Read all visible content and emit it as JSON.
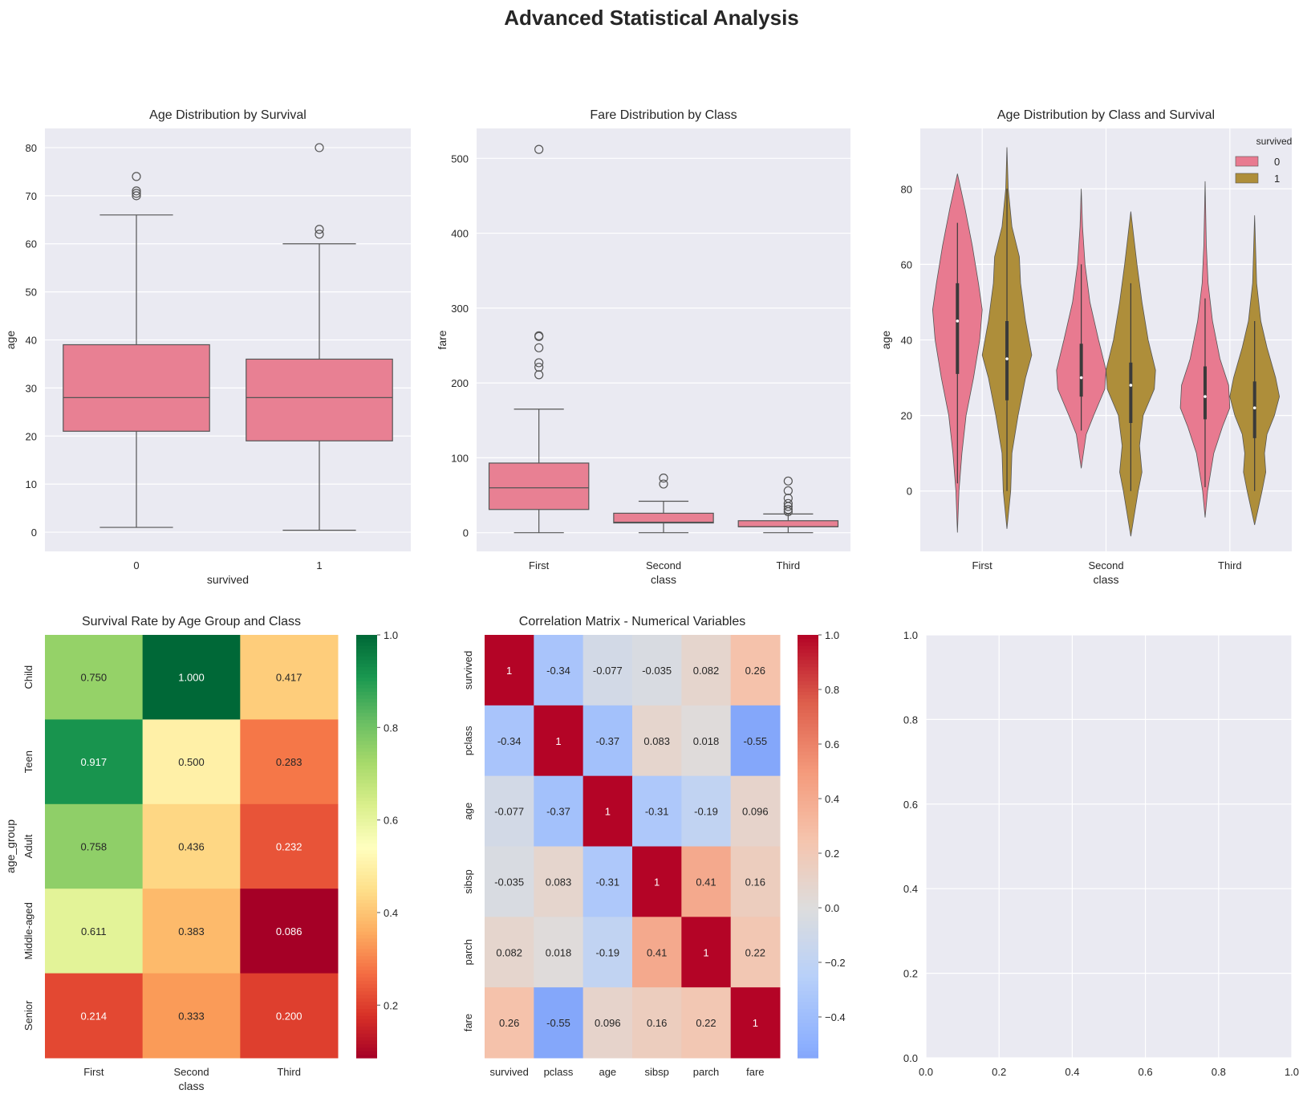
{
  "figure": {
    "title": "Advanced Statistical Analysis"
  },
  "colors": {
    "axes_bg": "#EAEAF2",
    "grid": "#FFFFFF",
    "box_fill": "#E88093",
    "violin_0": "#E87A90",
    "violin_1": "#AE8E3A",
    "box_line": "#555555"
  },
  "chart_data": [
    {
      "type": "box",
      "title": "Age Distribution by Survival",
      "xlabel": "survived",
      "ylabel": "age",
      "categories": [
        "0",
        "1"
      ],
      "ylim": [
        -4,
        84
      ],
      "yticks": [
        0,
        10,
        20,
        30,
        40,
        50,
        60,
        70,
        80
      ],
      "grid": true,
      "boxes": [
        {
          "category": "0",
          "whisker_low": 1,
          "q1": 21,
          "median": 28,
          "q3": 39,
          "whisker_high": 66,
          "outliers": [
            70,
            70.5,
            71,
            74
          ]
        },
        {
          "category": "1",
          "whisker_low": 0.4,
          "q1": 19,
          "median": 28,
          "q3": 36,
          "whisker_high": 60,
          "outliers": [
            62,
            63,
            80
          ]
        }
      ]
    },
    {
      "type": "box",
      "title": "Fare Distribution by Class",
      "xlabel": "class",
      "ylabel": "fare",
      "categories": [
        "First",
        "Second",
        "Third"
      ],
      "ylim": [
        -25,
        540
      ],
      "yticks": [
        0,
        100,
        200,
        300,
        400,
        500
      ],
      "grid": true,
      "boxes": [
        {
          "category": "First",
          "whisker_low": 0,
          "q1": 31,
          "median": 60,
          "q3": 93,
          "whisker_high": 165,
          "outliers": [
            211,
            221,
            227,
            247,
            262,
            263,
            512
          ]
        },
        {
          "category": "Second",
          "whisker_low": 0,
          "q1": 13,
          "median": 14,
          "q3": 26,
          "whisker_high": 42,
          "outliers": [
            65,
            73
          ]
        },
        {
          "category": "Third",
          "whisker_low": 0,
          "q1": 8,
          "median": 8,
          "q3": 16,
          "whisker_high": 25,
          "outliers": [
            28,
            31,
            35,
            39,
            46,
            56,
            69
          ]
        }
      ]
    },
    {
      "type": "violin",
      "title": "Age Distribution by Class and Survival",
      "xlabel": "class",
      "ylabel": "age",
      "categories": [
        "First",
        "Second",
        "Third"
      ],
      "ylim": [
        -16,
        96
      ],
      "yticks": [
        0,
        20,
        40,
        60,
        80
      ],
      "grid": true,
      "legend": {
        "title": "survived",
        "entries": [
          "0",
          "1"
        ],
        "placement": "top-right"
      },
      "violins": [
        {
          "category": "First",
          "survived": "0",
          "profile": [
            [
              -11,
              0.0
            ],
            [
              0,
              0.06
            ],
            [
              10,
              0.18
            ],
            [
              20,
              0.35
            ],
            [
              30,
              0.65
            ],
            [
              40,
              0.9
            ],
            [
              48,
              1.0
            ],
            [
              55,
              0.85
            ],
            [
              65,
              0.6
            ],
            [
              75,
              0.3
            ],
            [
              84,
              0.0
            ]
          ],
          "q1": 31,
          "median": 45,
          "q3": 55,
          "whisker_low": 2,
          "whisker_high": 71
        },
        {
          "category": "First",
          "survived": "1",
          "profile": [
            [
              -10,
              0.0
            ],
            [
              0,
              0.15
            ],
            [
              10,
              0.2
            ],
            [
              20,
              0.45
            ],
            [
              30,
              0.75
            ],
            [
              36,
              1.0
            ],
            [
              45,
              0.75
            ],
            [
              55,
              0.55
            ],
            [
              62,
              0.5
            ],
            [
              70,
              0.2
            ],
            [
              80,
              0.05
            ],
            [
              91,
              0.0
            ]
          ],
          "q1": 24,
          "median": 35,
          "q3": 45,
          "whisker_low": 0,
          "whisker_high": 80
        },
        {
          "category": "Second",
          "survived": "0",
          "profile": [
            [
              6,
              0.0
            ],
            [
              15,
              0.2
            ],
            [
              20,
              0.5
            ],
            [
              27,
              0.95
            ],
            [
              32,
              1.0
            ],
            [
              40,
              0.7
            ],
            [
              50,
              0.35
            ],
            [
              60,
              0.15
            ],
            [
              70,
              0.05
            ],
            [
              80,
              0.0
            ]
          ],
          "q1": 25,
          "median": 30,
          "q3": 39,
          "whisker_low": 16,
          "whisker_high": 60
        },
        {
          "category": "Second",
          "survived": "1",
          "profile": [
            [
              -12,
              0.0
            ],
            [
              0,
              0.3
            ],
            [
              5,
              0.45
            ],
            [
              12,
              0.35
            ],
            [
              20,
              0.5
            ],
            [
              27,
              0.95
            ],
            [
              32,
              1.0
            ],
            [
              40,
              0.7
            ],
            [
              50,
              0.45
            ],
            [
              60,
              0.25
            ],
            [
              74,
              0.0
            ]
          ],
          "q1": 18,
          "median": 28,
          "q3": 34,
          "whisker_low": 0,
          "whisker_high": 55
        },
        {
          "category": "Third",
          "survived": "0",
          "profile": [
            [
              -7,
              0.0
            ],
            [
              0,
              0.1
            ],
            [
              10,
              0.35
            ],
            [
              17,
              0.7
            ],
            [
              22,
              1.0
            ],
            [
              28,
              0.95
            ],
            [
              35,
              0.6
            ],
            [
              45,
              0.3
            ],
            [
              55,
              0.12
            ],
            [
              65,
              0.05
            ],
            [
              82,
              0.0
            ]
          ],
          "q1": 19,
          "median": 25,
          "q3": 33,
          "whisker_low": 1,
          "whisker_high": 51
        },
        {
          "category": "Third",
          "survived": "1",
          "profile": [
            [
              -9,
              0.0
            ],
            [
              0,
              0.3
            ],
            [
              5,
              0.45
            ],
            [
              10,
              0.4
            ],
            [
              15,
              0.5
            ],
            [
              20,
              0.8
            ],
            [
              25,
              1.0
            ],
            [
              30,
              0.85
            ],
            [
              38,
              0.5
            ],
            [
              45,
              0.25
            ],
            [
              55,
              0.08
            ],
            [
              73,
              0.0
            ]
          ],
          "q1": 14,
          "median": 22,
          "q3": 29,
          "whisker_low": 0,
          "whisker_high": 45
        }
      ]
    },
    {
      "type": "heatmap",
      "title": "Survival Rate by Age Group and Class",
      "xlabel": "class",
      "ylabel": "age_group",
      "x": [
        "First",
        "Second",
        "Third"
      ],
      "y": [
        "Child",
        "Teen",
        "Adult",
        "Middle-aged",
        "Senior"
      ],
      "values": [
        [
          0.75,
          1.0,
          0.417
        ],
        [
          0.917,
          0.5,
          0.283
        ],
        [
          0.758,
          0.436,
          0.232
        ],
        [
          0.611,
          0.383,
          0.086
        ],
        [
          0.214,
          0.333,
          0.2
        ]
      ],
      "labels": [
        [
          "0.750",
          "1.000",
          "0.417"
        ],
        [
          "0.917",
          "0.500",
          "0.283"
        ],
        [
          "0.758",
          "0.436",
          "0.232"
        ],
        [
          "0.611",
          "0.383",
          "0.086"
        ],
        [
          "0.214",
          "0.333",
          "0.200"
        ]
      ],
      "colormap": "RdYlGn",
      "vmin": 0.086,
      "vmax": 1.0,
      "colorbar_ticks": [
        0.2,
        0.4,
        0.6,
        0.8,
        1.0
      ],
      "colorbar_tick_labels": [
        "0.2",
        "0.4",
        "0.6",
        "0.8",
        "1.0"
      ]
    },
    {
      "type": "heatmap",
      "title": "Correlation Matrix - Numerical Variables",
      "xlabel": "",
      "ylabel": "",
      "x": [
        "survived",
        "pclass",
        "age",
        "sibsp",
        "parch",
        "fare"
      ],
      "y": [
        "survived",
        "pclass",
        "age",
        "sibsp",
        "parch",
        "fare"
      ],
      "values": [
        [
          1,
          -0.34,
          -0.077,
          -0.035,
          0.082,
          0.26
        ],
        [
          -0.34,
          1,
          -0.37,
          0.083,
          0.018,
          -0.55
        ],
        [
          -0.077,
          -0.37,
          1,
          -0.31,
          -0.19,
          0.096
        ],
        [
          -0.035,
          0.083,
          -0.31,
          1,
          0.41,
          0.16
        ],
        [
          0.082,
          0.018,
          -0.19,
          0.41,
          1,
          0.22
        ],
        [
          0.26,
          -0.55,
          0.096,
          0.16,
          0.22,
          1
        ]
      ],
      "labels": [
        [
          "1",
          "-0.34",
          "-0.077",
          "-0.035",
          "0.082",
          "0.26"
        ],
        [
          "-0.34",
          "1",
          "-0.37",
          "0.083",
          "0.018",
          "-0.55"
        ],
        [
          "-0.077",
          "-0.37",
          "1",
          "-0.31",
          "-0.19",
          "0.096"
        ],
        [
          "-0.035",
          "0.083",
          "-0.31",
          "1",
          "0.41",
          "0.16"
        ],
        [
          "0.082",
          "0.018",
          "-0.19",
          "0.41",
          "1",
          "0.22"
        ],
        [
          "0.26",
          "-0.55",
          "0.096",
          "0.16",
          "0.22",
          "1"
        ]
      ],
      "colormap": "coolwarm",
      "vmin": -0.55,
      "vmax": 1.0,
      "center": 0,
      "colorbar_ticks": [
        -0.4,
        -0.2,
        0.0,
        0.2,
        0.4,
        0.6,
        0.8,
        1.0
      ],
      "colorbar_tick_labels": [
        "−0.4",
        "−0.2",
        "0.0",
        "0.2",
        "0.4",
        "0.6",
        "0.8",
        "1.0"
      ]
    },
    {
      "type": "empty",
      "title": "",
      "xlim": [
        0,
        1
      ],
      "ylim": [
        0,
        1
      ],
      "xticks": [
        "0.0",
        "0.2",
        "0.4",
        "0.6",
        "0.8",
        "1.0"
      ],
      "yticks": [
        "0.0",
        "0.2",
        "0.4",
        "0.6",
        "0.8",
        "1.0"
      ],
      "grid": true
    }
  ]
}
